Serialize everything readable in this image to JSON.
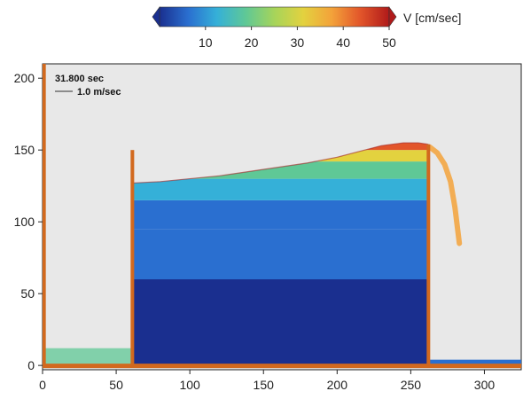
{
  "chart_data": {
    "type": "heatmap",
    "title": "",
    "xlabel": "",
    "ylabel": "",
    "xlim": [
      0,
      325
    ],
    "ylim": [
      -3,
      210
    ],
    "x_ticks": [
      0,
      50,
      100,
      150,
      200,
      250,
      300
    ],
    "y_ticks": [
      0,
      50,
      100,
      150,
      200
    ],
    "colorbar": {
      "label": "V [cm/sec]",
      "min": 0,
      "max": 50,
      "ticks": [
        10,
        20,
        30,
        40,
        50
      ],
      "colors": [
        "#1a2f8f",
        "#2a6fd0",
        "#35b0d8",
        "#5fc896",
        "#a6d45a",
        "#e3d23f",
        "#f3a23a",
        "#e2552a",
        "#b01a1a"
      ]
    },
    "annotations": {
      "time": "31.800 sec",
      "scale_vector": "1.0 m/sec"
    },
    "walls": [
      {
        "x": 1,
        "y_top": 210
      },
      {
        "x": 61,
        "y_top": 150
      },
      {
        "x": 262,
        "y_top": 154
      }
    ],
    "floor_y": 0,
    "water_surface": {
      "x": [
        61,
        80,
        100,
        120,
        140,
        160,
        180,
        200,
        215,
        230,
        245,
        255,
        262
      ],
      "y": [
        127,
        128,
        130,
        132,
        135,
        138,
        141,
        145,
        149,
        153,
        155,
        155,
        154
      ]
    },
    "velocity_bands": [
      {
        "y_from": 0,
        "y_to": 60,
        "v": 3
      },
      {
        "y_from": 60,
        "y_to": 95,
        "v": 7
      },
      {
        "y_from": 95,
        "y_to": 115,
        "v": 11
      },
      {
        "y_from": 115,
        "y_to": 130,
        "v": 16
      },
      {
        "y_from": 130,
        "y_to": 142,
        "v": 24
      },
      {
        "y_from": 142,
        "y_to": 150,
        "v": 34
      },
      {
        "y_from": 150,
        "y_to": 156,
        "v": 44
      }
    ],
    "spillover_jet": {
      "x": [
        263,
        268,
        273,
        277,
        280,
        283
      ],
      "y": [
        152,
        148,
        140,
        128,
        110,
        85
      ],
      "v": 42
    },
    "left_pool": {
      "x_from": 1,
      "x_to": 61,
      "depth": 12,
      "v": 20
    },
    "right_pool": {
      "x_from": 262,
      "x_to": 325,
      "depth": 4,
      "v": 8
    }
  }
}
